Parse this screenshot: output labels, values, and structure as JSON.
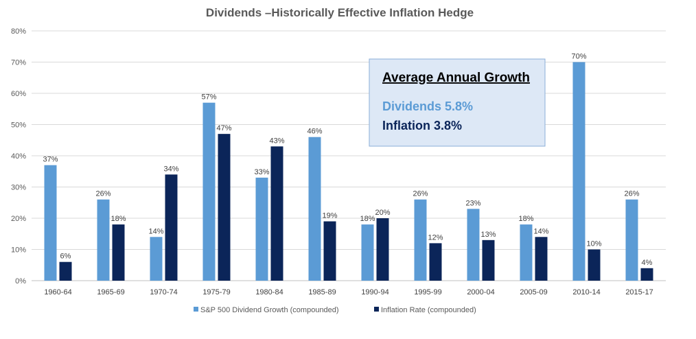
{
  "chart_data": {
    "type": "bar",
    "title": "Dividends –Historically Effective Inflation Hedge",
    "categories": [
      "1960-64",
      "1965-69",
      "1970-74",
      "1975-79",
      "1980-84",
      "1985-89",
      "1990-94",
      "1995-99",
      "2000-04",
      "2005-09",
      "2010-14",
      "2015-17"
    ],
    "series": [
      {
        "name": "S&P 500 Dividend Growth (compounded)",
        "color": "#5b9bd5",
        "values": [
          37,
          26,
          14,
          57,
          33,
          46,
          18,
          26,
          23,
          18,
          70,
          26
        ]
      },
      {
        "name": "Inflation Rate (compounded)",
        "color": "#0b2559",
        "values": [
          6,
          18,
          34,
          47,
          43,
          19,
          20,
          12,
          13,
          14,
          10,
          4
        ]
      }
    ],
    "value_suffix": "%",
    "ylim": [
      0,
      80
    ],
    "yticks": [
      "0%",
      "10%",
      "20%",
      "30%",
      "40%",
      "50%",
      "60%",
      "70%",
      "80%"
    ],
    "xlabel": "",
    "ylabel": "",
    "grid": true,
    "legend_position": "bottom",
    "annotation": {
      "heading": "Average Annual Growth",
      "lines": [
        {
          "text": "Dividends 5.8%",
          "color": "#5b9bd5"
        },
        {
          "text": "Inflation 3.8%",
          "color": "#0b2559"
        }
      ],
      "background": "#dde8f6",
      "border": "#8aaed8"
    }
  }
}
